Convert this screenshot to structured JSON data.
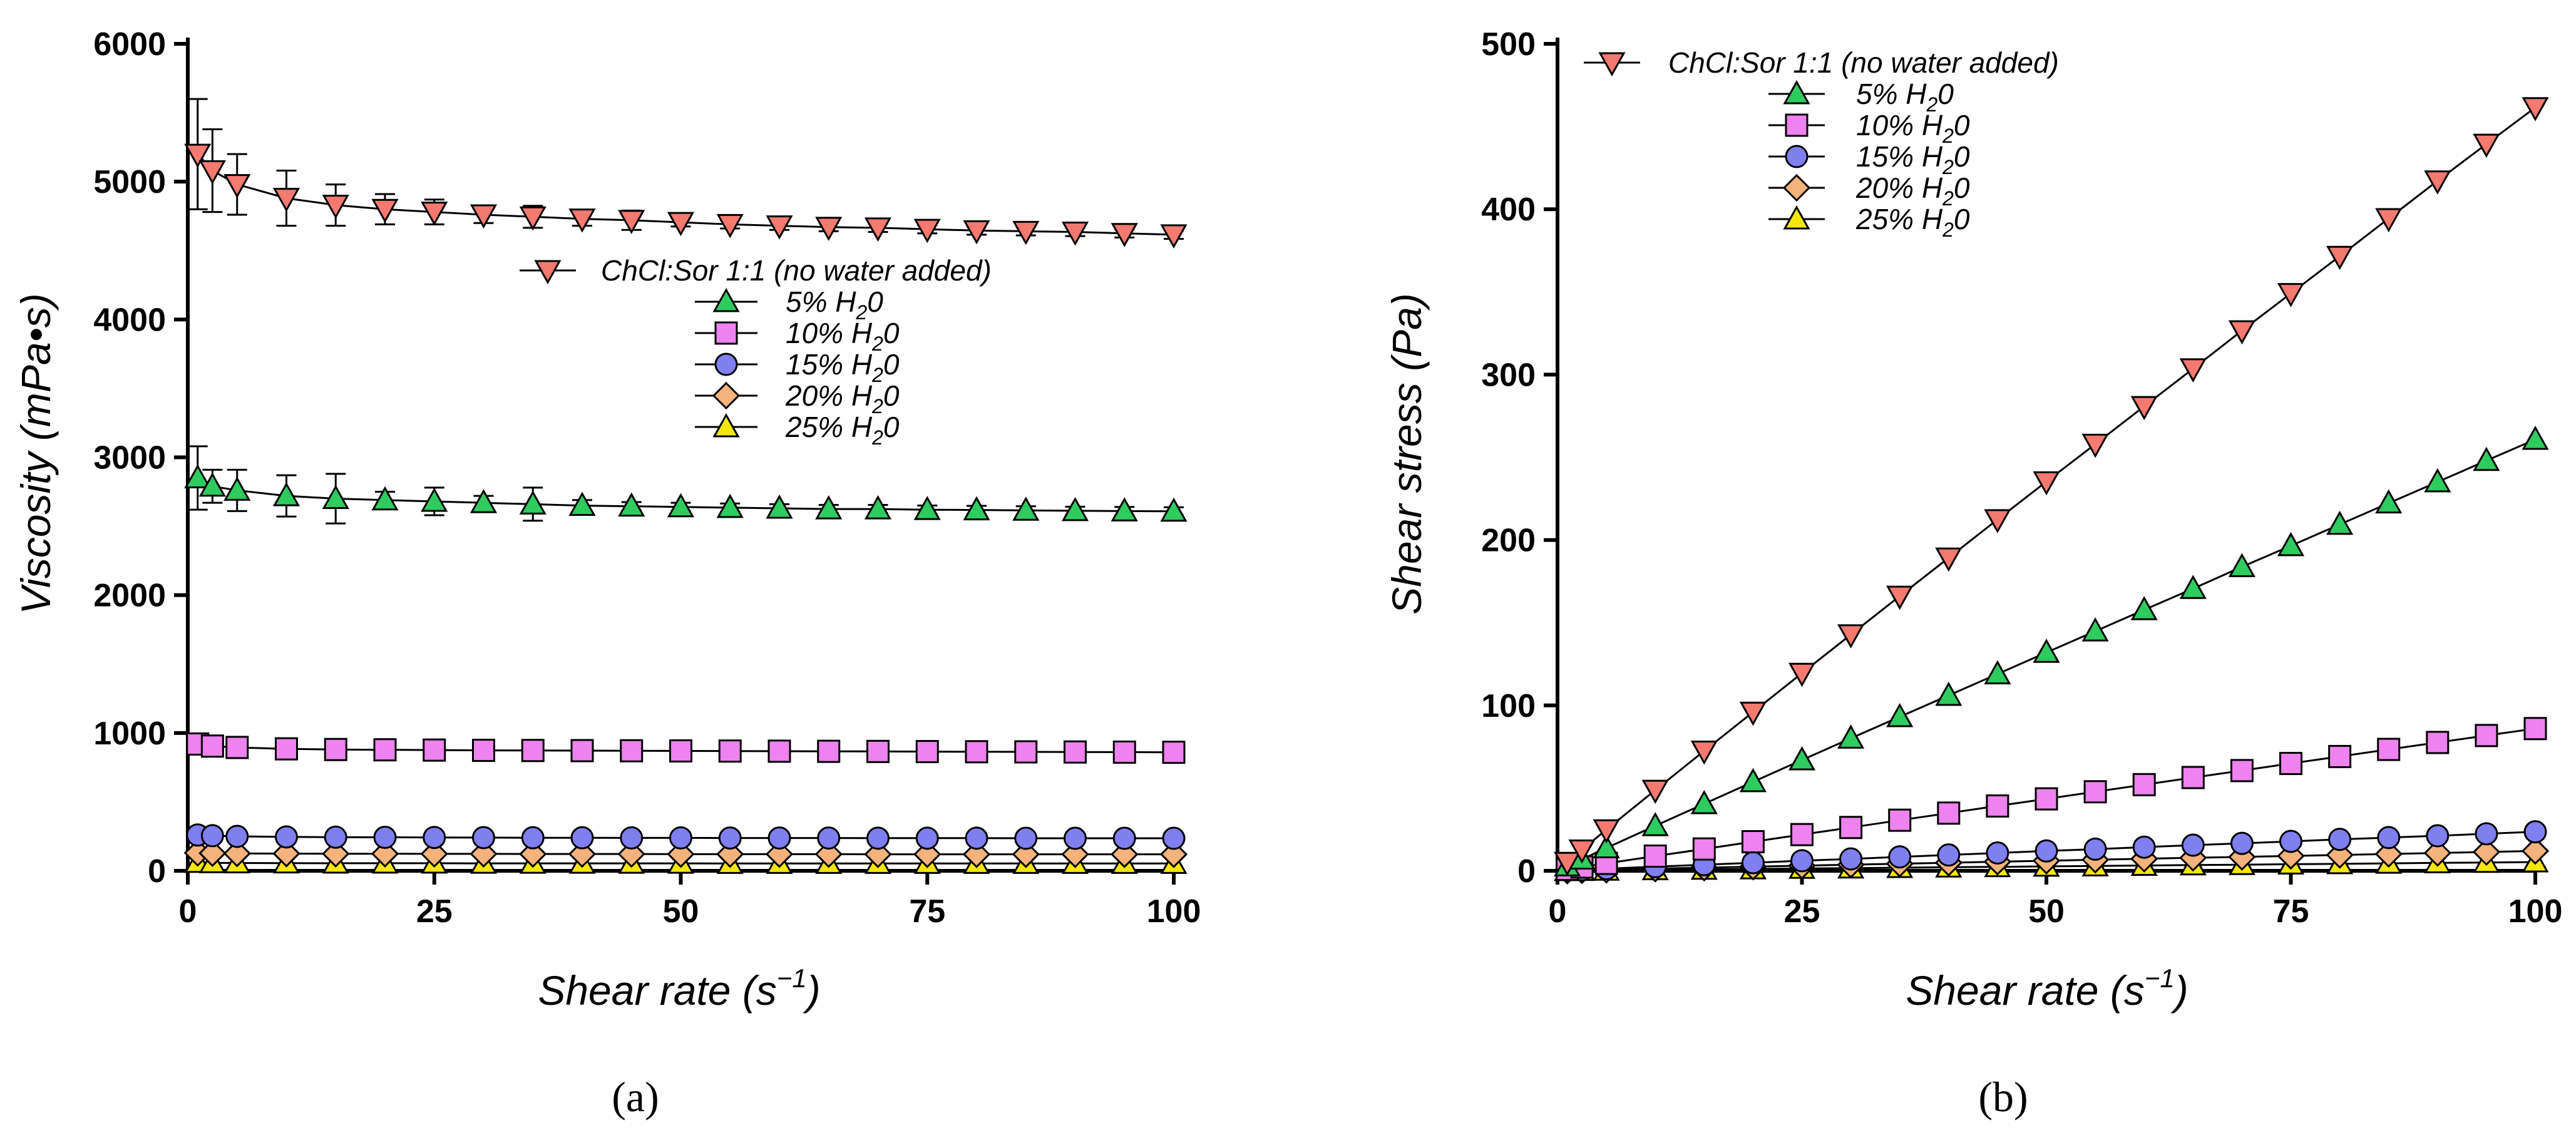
{
  "series_styles": [
    {
      "name": "ChCl:Sor 1:1 (no water added)",
      "marker": "triangle-down",
      "fill": "#f47a6f"
    },
    {
      "name": "5% H",
      "marker": "triangle-up",
      "fill": "#2ecc5e"
    },
    {
      "name": "10% H",
      "marker": "square",
      "fill": "#ee82ee"
    },
    {
      "name": "15% H",
      "marker": "circle",
      "fill": "#7f7ff0"
    },
    {
      "name": "20% H",
      "marker": "diamond",
      "fill": "#f5b27a"
    },
    {
      "name": "25% H",
      "marker": "triangle-up",
      "fill": "#f5e60a"
    }
  ],
  "chart_data": [
    {
      "type": "line",
      "panel": "(a)",
      "xlabel": "Shear rate (s",
      "xlabel_sup": "−1",
      "xlabel_close": ")",
      "ylabel": "Viscosity (mPa•s)",
      "xlim": [
        0,
        100
      ],
      "ylim": [
        0,
        6000
      ],
      "xticks": [
        0,
        25,
        50,
        75,
        100
      ],
      "yticks": [
        0,
        1000,
        2000,
        3000,
        4000,
        5000,
        6000
      ],
      "legend_position": "center-right",
      "x": [
        1,
        2.5,
        5,
        10,
        15,
        20,
        25,
        30,
        35,
        40,
        45,
        50,
        55,
        60,
        65,
        70,
        75,
        80,
        85,
        90,
        95,
        100
      ],
      "series": [
        {
          "name": "ChCl:Sor 1:1 (no water added)",
          "sub": "",
          "suffix": "",
          "values": [
            5200,
            5080,
            4980,
            4880,
            4830,
            4800,
            4780,
            4760,
            4745,
            4730,
            4720,
            4705,
            4690,
            4680,
            4670,
            4665,
            4655,
            4645,
            4640,
            4635,
            4625,
            4615
          ],
          "errors": [
            400,
            300,
            220,
            200,
            150,
            110,
            90,
            60,
            80,
            50,
            70,
            30,
            30,
            30,
            30,
            30,
            30,
            30,
            30,
            30,
            30,
            30
          ]
        },
        {
          "name": "5% H",
          "sub": "2",
          "suffix": "0",
          "values": [
            2850,
            2790,
            2760,
            2720,
            2700,
            2690,
            2680,
            2670,
            2660,
            2650,
            2645,
            2640,
            2635,
            2630,
            2625,
            2625,
            2620,
            2618,
            2615,
            2612,
            2610,
            2608
          ],
          "errors": [
            230,
            120,
            150,
            150,
            180,
            60,
            100,
            50,
            120,
            40,
            30,
            30,
            30,
            30,
            30,
            30,
            30,
            30,
            30,
            30,
            30,
            30
          ]
        },
        {
          "name": "10% H",
          "sub": "2",
          "suffix": "0",
          "values": [
            920,
            905,
            895,
            885,
            880,
            878,
            876,
            874,
            873,
            872,
            871,
            870,
            869,
            868,
            867,
            866,
            865,
            864,
            863,
            862,
            861,
            860
          ],
          "errors": []
        },
        {
          "name": "15% H",
          "sub": "2",
          "suffix": "0",
          "values": [
            260,
            255,
            250,
            246,
            244,
            243,
            242,
            241,
            240,
            240,
            239,
            239,
            238,
            238,
            238,
            237,
            237,
            237,
            236,
            236,
            236,
            236
          ],
          "errors": []
        },
        {
          "name": "20% H",
          "sub": "2",
          "suffix": "0",
          "values": [
            130,
            128,
            126,
            125,
            124,
            124,
            123,
            123,
            122,
            122,
            122,
            121,
            121,
            121,
            121,
            120,
            120,
            120,
            120,
            120,
            120,
            120
          ],
          "errors": []
        },
        {
          "name": "25% H",
          "sub": "2",
          "suffix": "0",
          "values": [
            60,
            58,
            57,
            56,
            55,
            55,
            55,
            54,
            54,
            54,
            54,
            54,
            53,
            53,
            53,
            53,
            53,
            53,
            53,
            53,
            53,
            53
          ],
          "errors": []
        }
      ]
    },
    {
      "type": "line",
      "panel": "(b)",
      "xlabel": "Shear rate (s",
      "xlabel_sup": "−1",
      "xlabel_close": ")",
      "ylabel": "Shear stress (Pa)",
      "xlim": [
        0,
        100
      ],
      "ylim": [
        0,
        500
      ],
      "xticks": [
        0,
        25,
        50,
        75,
        100
      ],
      "yticks": [
        0,
        100,
        200,
        300,
        400,
        500
      ],
      "legend_position": "top-left",
      "x": [
        1,
        2.5,
        5,
        10,
        15,
        20,
        25,
        30,
        35,
        40,
        45,
        50,
        55,
        60,
        65,
        70,
        75,
        80,
        85,
        90,
        95,
        100
      ],
      "series": [
        {
          "name": "ChCl:Sor 1:1 (no water added)",
          "sub": "",
          "suffix": "",
          "values": [
            5.2,
            12.7,
            24.9,
            48.8,
            72.5,
            96.0,
            119.5,
            142.8,
            166.1,
            189.2,
            212.4,
            235.3,
            258.0,
            280.8,
            303.6,
            326.6,
            349.1,
            371.6,
            394.4,
            417.2,
            439.4,
            461.5
          ],
          "errors": []
        },
        {
          "name": "5% H",
          "sub": "2",
          "suffix": "0",
          "values": [
            2.9,
            7.0,
            13.8,
            27.2,
            40.5,
            53.8,
            67.0,
            80.1,
            93.1,
            106.0,
            119.0,
            132.0,
            144.9,
            157.8,
            170.6,
            183.8,
            196.5,
            209.4,
            222.3,
            235.1,
            248.0,
            260.8
          ],
          "errors": []
        },
        {
          "name": "10% H",
          "sub": "2",
          "suffix": "0",
          "values": [
            0.9,
            2.3,
            4.5,
            8.9,
            13.2,
            17.6,
            21.9,
            26.2,
            30.6,
            34.9,
            39.2,
            43.5,
            47.8,
            52.1,
            56.4,
            60.6,
            64.9,
            69.1,
            73.4,
            77.6,
            81.8,
            86.0
          ],
          "errors": []
        },
        {
          "name": "15% H",
          "sub": "2",
          "suffix": "0",
          "values": [
            0.3,
            0.6,
            1.3,
            2.5,
            3.7,
            4.9,
            6.1,
            7.2,
            8.4,
            9.6,
            10.8,
            12.0,
            13.1,
            14.3,
            15.5,
            16.6,
            17.8,
            19.0,
            20.1,
            21.2,
            22.4,
            23.6
          ],
          "errors": []
        },
        {
          "name": "20% H",
          "sub": "2",
          "suffix": "0",
          "values": [
            0.1,
            0.3,
            0.6,
            1.3,
            1.9,
            2.5,
            3.1,
            3.7,
            4.3,
            4.9,
            5.5,
            6.1,
            6.7,
            7.3,
            7.9,
            8.4,
            9.0,
            9.6,
            10.2,
            10.8,
            11.4,
            12.0
          ],
          "errors": []
        },
        {
          "name": "25% H",
          "sub": "2",
          "suffix": "0",
          "values": [
            0.06,
            0.15,
            0.29,
            0.56,
            0.83,
            1.1,
            1.4,
            1.6,
            1.9,
            2.2,
            2.4,
            2.7,
            2.9,
            3.2,
            3.5,
            3.7,
            4.0,
            4.2,
            4.5,
            4.8,
            5.0,
            5.3
          ],
          "errors": []
        }
      ]
    }
  ]
}
